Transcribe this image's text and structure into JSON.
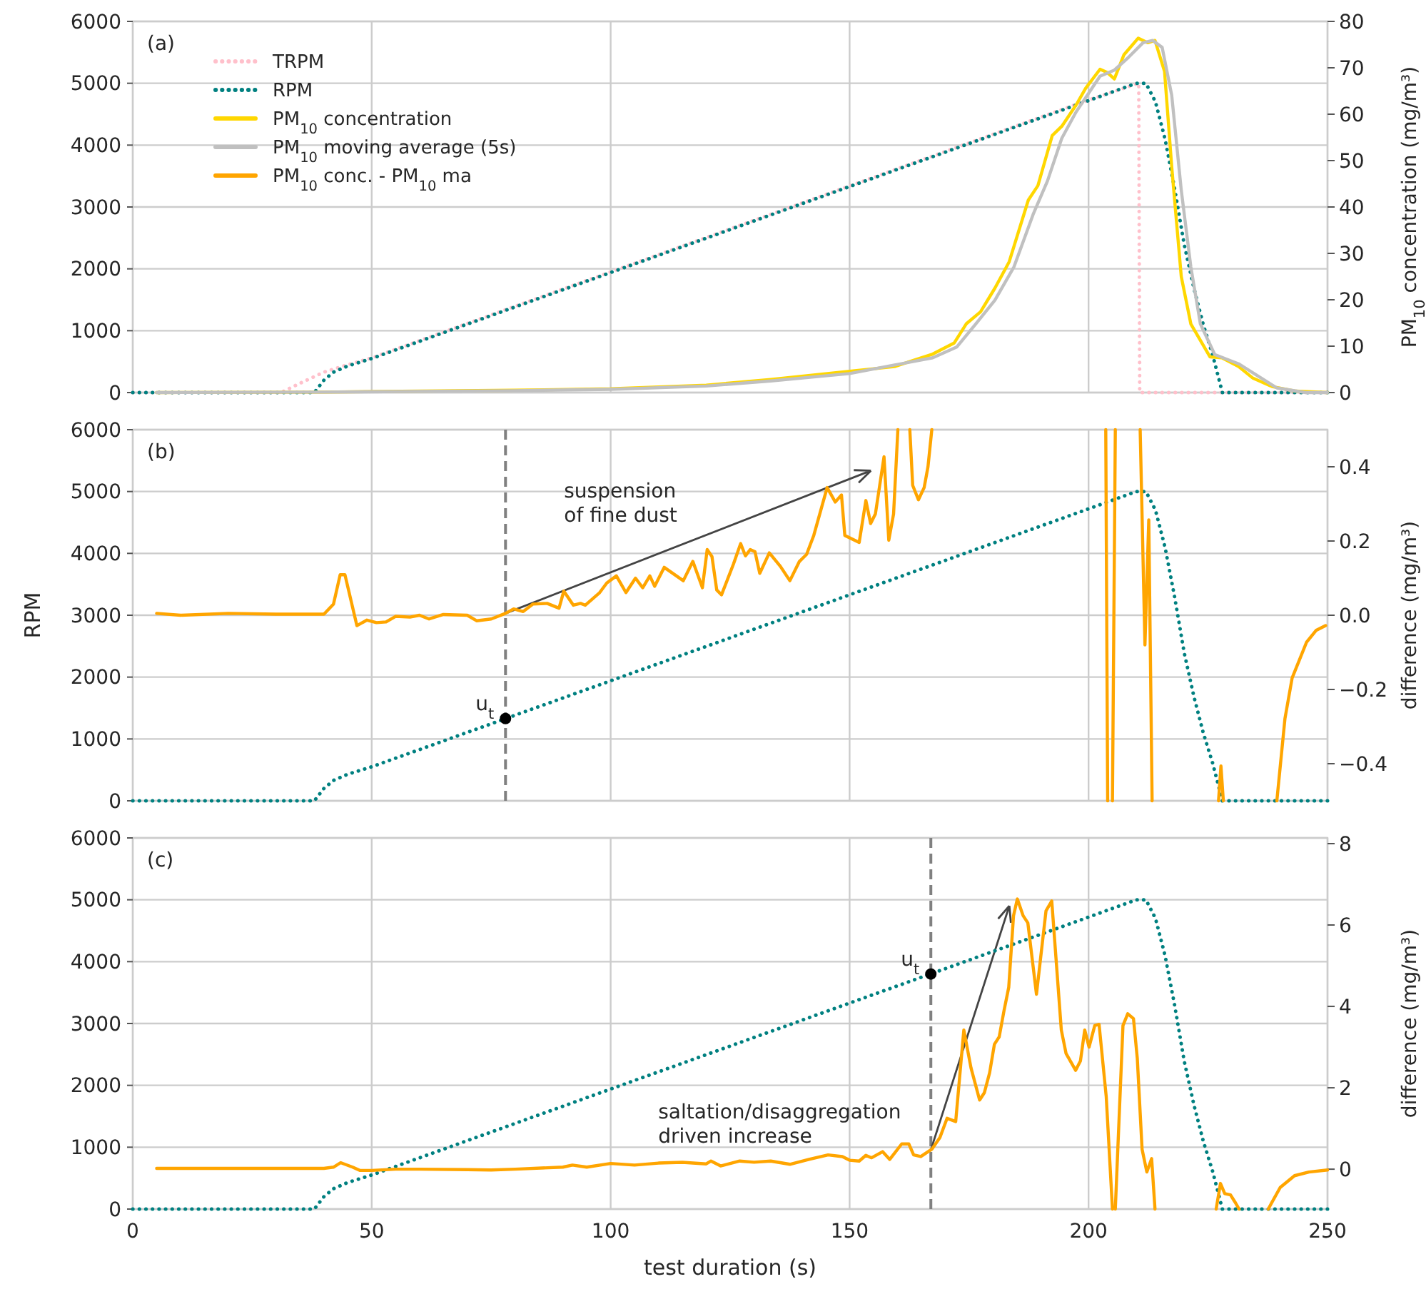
{
  "chart_data": [
    {
      "type": "line",
      "xlim": [
        0,
        250
      ],
      "xticks": [
        0,
        50,
        100,
        150,
        200,
        250
      ],
      "ylim": [
        0,
        6000
      ],
      "yticks": [
        0,
        1000,
        2000,
        3000,
        4000,
        5000,
        6000
      ],
      "y2lim": [
        0,
        80
      ],
      "y2ticks": [
        0,
        10,
        20,
        30,
        40,
        50,
        60,
        70,
        80
      ],
      "y2label": "PM$_{10}$ concentration (mg/m³)",
      "grid": true,
      "legend": "top left",
      "tick_labels": "y",
      "annotations": [
        "(a)"
      ],
      "series": [
        {
          "name": "TRPM",
          "color": "#ffc0cb",
          "line_style": "dotted",
          "x": [
            0,
            31,
            35,
            40,
            45,
            50,
            100,
            150,
            200,
            210.5,
            210.7,
            250
          ],
          "values": [
            0,
            0,
            150,
            330,
            450,
            560,
            1950,
            3340,
            4730,
            5000,
            0,
            0
          ]
        },
        {
          "name": "RPM",
          "color": "#008080",
          "line_style": "dotted",
          "x": [
            0,
            38,
            40,
            42,
            45,
            50,
            100,
            150,
            200,
            210,
            212,
            214,
            216,
            218,
            220,
            222,
            224,
            226,
            228,
            250
          ],
          "values": [
            0,
            0,
            200,
            330,
            430,
            550,
            1940,
            3330,
            4720,
            5000,
            5000,
            4700,
            4100,
            3300,
            2400,
            1700,
            1100,
            600,
            0,
            0
          ]
        },
        {
          "name": "PM$_{10}$ concentration",
          "color": "#ffd700",
          "axis": "y2",
          "x": [
            5,
            40,
            80,
            100,
            120,
            133.5,
            150,
            159.4,
            167.4,
            171.9,
            174.4,
            177.4,
            180.4,
            183.4,
            187.4,
            189.4,
            192.4,
            194.4,
            197.4,
            199.4,
            202.4,
            203.9,
            205.4,
            207.4,
            210.4,
            212.4,
            213.9,
            215.9,
            217.4,
            219.4,
            221.4,
            225.4,
            227.9,
            231.4,
            234.4,
            238.4,
            243.4,
            250
          ],
          "values": [
            0,
            0.1,
            0.5,
            0.8,
            1.6,
            2.8,
            4.6,
            5.6,
            8.3,
            10.7,
            14.8,
            17.4,
            22.5,
            28.2,
            41.5,
            44.6,
            55.4,
            57.4,
            62,
            65.6,
            69.7,
            69,
            67.6,
            72.8,
            76.4,
            75.4,
            75.9,
            69.2,
            48.7,
            25,
            14.8,
            7.7,
            7.5,
            5.6,
            3.1,
            1.3,
            0.3,
            0
          ]
        },
        {
          "name": "PM$_{10}$ moving average (5s)",
          "color": "#c0c0c0",
          "axis": "y2",
          "x": [
            5,
            40,
            80,
            100,
            120,
            133.5,
            150,
            167.4,
            172.4,
            176.4,
            180.4,
            184.4,
            188.4,
            191.4,
            194.4,
            197.4,
            200.4,
            202.4,
            205.4,
            208.4,
            211.4,
            213.4,
            215.4,
            217.4,
            219.4,
            221.4,
            223.4,
            226.4,
            231.4,
            235.4,
            239.4,
            245.4,
            250
          ],
          "values": [
            0,
            0.1,
            0.4,
            0.7,
            1.4,
            2.5,
            4.1,
            7.5,
            9.8,
            14.8,
            19.9,
            27.1,
            38.4,
            45.6,
            54.8,
            60.5,
            65.1,
            68.2,
            69.5,
            72.3,
            75.4,
            75.9,
            74.4,
            64.1,
            43.6,
            27.1,
            14.8,
            8.2,
            6.2,
            3.6,
            1.0,
            0,
            0
          ]
        }
      ]
    },
    {
      "type": "line",
      "xlim": [
        0,
        250
      ],
      "xticks": [
        0,
        50,
        100,
        150,
        200,
        250
      ],
      "ylim": [
        0,
        6000
      ],
      "yticks": [
        0,
        1000,
        2000,
        3000,
        4000,
        5000,
        6000
      ],
      "ylabel": "RPM",
      "y2lim": [
        -0.5,
        0.5
      ],
      "y2ticks": [
        {
          "value": -0.4,
          "label": "−0.4"
        },
        {
          "value": -0.2,
          "label": "−0.2"
        },
        {
          "value": 0,
          "label": "0.0"
        },
        0.2,
        0.4
      ],
      "y2label": "difference (mg/m³)",
      "grid": true,
      "tick_labels": "y",
      "annotations": [
        "(b)",
        {
          "text": "u$_{t}$",
          "x": 78,
          "y": 1330
        },
        "suspension\nof fine dust"
      ],
      "ref_lines": [
        {
          "axis": "x",
          "value": 78,
          "color": "#808080",
          "line_style": "dashed"
        }
      ],
      "series": [
        {
          "color": "#008080",
          "line_style": "dotted",
          "x": [
            0,
            38,
            40,
            42,
            45,
            50,
            100,
            150,
            200,
            210,
            212,
            214,
            216,
            218,
            220,
            222,
            224,
            226,
            228,
            250
          ],
          "values": [
            0,
            0,
            200,
            330,
            430,
            550,
            1940,
            3330,
            4720,
            5000,
            5000,
            4700,
            4100,
            3300,
            2400,
            1700,
            1100,
            600,
            0,
            0
          ]
        },
        {
          "name": "PM$_{10}$ conc. - PM$_{10}$ ma",
          "color": "#ffa500",
          "axis": "y2",
          "x": [
            5,
            10,
            20,
            30,
            40,
            42,
            43.4,
            44.4,
            46.9,
            49,
            51,
            53,
            55,
            58,
            60,
            62,
            65,
            70,
            72,
            75,
            78,
            79.7,
            81.7,
            83.7,
            86.7,
            89.2,
            90.2,
            92.2,
            93.7,
            94.7,
            97.7,
            99.2,
            101.2,
            103.2,
            105.2,
            106.7,
            108.2,
            109.2,
            111.2,
            115.2,
            117.2,
            119.2,
            120.2,
            121.2,
            122.2,
            123.2,
            125.7,
            127.2,
            128.2,
            129.2,
            130.2,
            131.2,
            133.2,
            135.5,
            137.5,
            139.5,
            141,
            142.5,
            145.3,
            147,
            148.3,
            149,
            152,
            153.4,
            154.4,
            155.4,
            157.2,
            158.2,
            159.2,
            160.1,
            161,
            162.6,
            163.2,
            164.4,
            165.6,
            166.4,
            167.2,
            180,
            203.6,
            204,
            204.5,
            205,
            205.6,
            208,
            210.8,
            211.8,
            212.6,
            213.3,
            220,
            227.2,
            227.7,
            228.2,
            235,
            239.4,
            241.1,
            242.6,
            245.6,
            247.6,
            249.6
          ],
          "values": [
            0.005,
            0,
            0.005,
            0.003,
            0.003,
            0.03,
            0.109,
            0.109,
            -0.028,
            -0.013,
            -0.02,
            -0.018,
            -0.003,
            -0.005,
            0,
            -0.01,
            0.002,
            0,
            -0.015,
            -0.01,
            0.005,
            0.017,
            0.01,
            0.03,
            0.032,
            0.019,
            0.065,
            0.027,
            0.032,
            0.027,
            0.061,
            0.087,
            0.106,
            0.061,
            0.1,
            0.074,
            0.106,
            0.078,
            0.129,
            0.093,
            0.145,
            0.074,
            0.177,
            0.158,
            0.068,
            0.055,
            0.138,
            0.193,
            0.16,
            0.177,
            0.171,
            0.113,
            0.168,
            0.132,
            0.093,
            0.145,
            0.164,
            0.215,
            0.344,
            0.305,
            0.324,
            0.215,
            0.196,
            0.309,
            0.247,
            0.273,
            0.427,
            0.202,
            0.273,
            0.5,
            null,
            0.5,
            0.35,
            0.311,
            0.344,
            0.4,
            0.5,
            null,
            0.5,
            -0.5,
            null,
            -0.5,
            0.5,
            null,
            0.5,
            -0.08,
            0.257,
            -0.5,
            null,
            -0.5,
            -0.406,
            -0.5,
            null,
            -0.5,
            -0.278,
            -0.169,
            -0.073,
            -0.041,
            -0.028
          ]
        },
        {
          "type": "scatter",
          "color": "#000000",
          "marker": "circle",
          "x": [
            78
          ],
          "values": [
            1330
          ]
        }
      ]
    },
    {
      "type": "line",
      "xlim": [
        0,
        250
      ],
      "xticks": [
        0,
        50,
        100,
        150,
        200,
        250
      ],
      "xlabel": "test duration (s)",
      "ylim": [
        0,
        6000
      ],
      "yticks": [
        0,
        1000,
        2000,
        3000,
        4000,
        5000,
        6000
      ],
      "y2lim": [
        -0.98,
        8.14
      ],
      "y2ticks": [
        0,
        2,
        4,
        6,
        8
      ],
      "y2label": "difference (mg/m³)",
      "grid": true,
      "annotations": [
        "(c)",
        {
          "text": "u$_{t}$",
          "x": 167,
          "y": 3800
        },
        "saltation/disaggregation\ndriven increase"
      ],
      "ref_lines": [
        {
          "axis": "x",
          "value": 167,
          "color": "#808080",
          "line_style": "dashed"
        }
      ],
      "series": [
        {
          "color": "#008080",
          "line_style": "dotted",
          "x": [
            0,
            38,
            40,
            42,
            45,
            50,
            100,
            150,
            200,
            210,
            212,
            214,
            216,
            218,
            220,
            222,
            224,
            226,
            228,
            250
          ],
          "values": [
            0,
            0,
            200,
            330,
            430,
            550,
            1940,
            3330,
            4720,
            5000,
            5000,
            4700,
            4100,
            3300,
            2400,
            1700,
            1100,
            600,
            0,
            0
          ]
        },
        {
          "color": "#ffa500",
          "axis": "y2",
          "x": [
            5,
            20,
            40,
            42,
            43.5,
            46,
            47.5,
            50,
            55,
            60,
            70,
            75,
            80,
            90,
            92,
            95,
            100,
            105,
            110,
            115,
            120,
            121,
            123,
            127,
            130,
            133.5,
            137.5,
            141.5,
            145.5,
            148.5,
            150,
            152,
            153.4,
            154.6,
            156.9,
            158.4,
            160.9,
            162.4,
            163.4,
            164.9,
            167.2,
            168.9,
            170.4,
            172.2,
            173.9,
            175.4,
            177.2,
            178.2,
            179.3,
            180.3,
            181.3,
            182.3,
            183.3,
            184.3,
            185.1,
            186.3,
            187.3,
            189.1,
            191.1,
            192.3,
            194.3,
            195.3,
            197.3,
            198.3,
            199.2,
            200.1,
            201.3,
            202.2,
            203.7,
            205,
            205.3,
            205.6,
            207.2,
            208.2,
            209.4,
            210.2,
            211.2,
            212.2,
            213.2,
            213.9,
            220,
            226.7,
            227.6,
            228.5,
            229.7,
            230.6,
            231.5,
            235,
            237.6,
            240.1,
            243.1,
            246.1,
            250
          ],
          "values": [
            0.02,
            0.02,
            0.02,
            0.05,
            0.16,
            0.05,
            -0.03,
            -0.03,
            0,
            0,
            -0.01,
            -0.02,
            0,
            0.05,
            0.1,
            0.05,
            0.14,
            0.1,
            0.15,
            0.17,
            0.13,
            0.2,
            0.08,
            0.2,
            0.17,
            0.2,
            0.12,
            0.24,
            0.35,
            0.31,
            0.22,
            0.2,
            0.34,
            0.28,
            0.43,
            0.24,
            0.62,
            0.62,
            0.35,
            0.31,
            0.49,
            0.78,
            1.25,
            1.17,
            3.42,
            2.49,
            1.7,
            1.88,
            2.37,
            3.07,
            3.25,
            3.89,
            4.47,
            6.23,
            6.64,
            6.23,
            6.05,
            4.3,
            6.35,
            6.59,
            3.42,
            2.84,
            2.43,
            2.66,
            3.42,
            3.0,
            3.53,
            3.56,
            1.78,
            -0.98,
            null,
            -0.98,
            3.53,
            3.82,
            3.7,
            2.72,
            0.49,
            -0.07,
            0.26,
            -0.98,
            null,
            -0.98,
            -0.35,
            -0.6,
            -0.63,
            -0.8,
            -0.98,
            null,
            -0.98,
            -0.45,
            -0.16,
            -0.07,
            -0.02
          ]
        },
        {
          "type": "scatter",
          "color": "#000000",
          "marker": "circle",
          "x": [
            167
          ],
          "values": [
            3800
          ]
        }
      ]
    }
  ]
}
